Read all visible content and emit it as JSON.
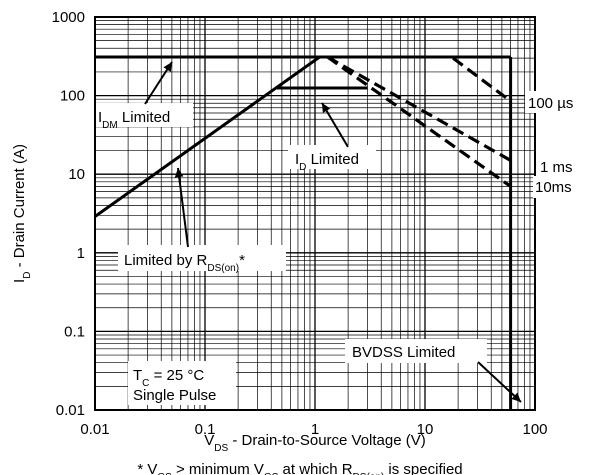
{
  "chart_data": {
    "type": "line",
    "x_scale": "log",
    "y_scale": "log",
    "xlim": [
      0.01,
      100
    ],
    "ylim": [
      0.01,
      1000
    ],
    "grid": "on (major and minor log gridlines)",
    "x_ticks": [
      "0.01",
      "0.1",
      "1",
      "10",
      "100"
    ],
    "y_ticks": [
      "1000",
      "100",
      "10",
      "1",
      "0.1",
      "0.01"
    ],
    "xlabel": {
      "main": "V",
      "sub": "DS",
      "rest": " - Drain-to-Source Voltage (V)"
    },
    "ylabel": {
      "main": "I",
      "sub": "D",
      "rest": " - Drain Current (A)"
    },
    "footnote": "* V_GS > minimum V_GS at which R_DS(on) is specified",
    "series": [
      {
        "style": "solid",
        "role": "RDS(on) limit",
        "points": [
          [
            0.01,
            2.9
          ],
          [
            1.1,
            310
          ]
        ]
      },
      {
        "style": "solid",
        "role": "IDM limit",
        "points": [
          [
            0.01,
            310
          ],
          [
            60,
            310
          ]
        ]
      },
      {
        "style": "solid",
        "role": "ID limit",
        "points": [
          [
            0.45,
            125
          ],
          [
            3.0,
            125
          ]
        ]
      },
      {
        "style": "solid",
        "role": "BVDSS limit",
        "points": [
          [
            60,
            0.01
          ],
          [
            60,
            310
          ]
        ]
      },
      {
        "style": "dashed",
        "name": "100 µs",
        "points": [
          [
            18,
            300
          ],
          [
            60,
            85
          ]
        ]
      },
      {
        "style": "dashed",
        "name": "1 ms",
        "points": [
          [
            1.3,
            310
          ],
          [
            60,
            15
          ]
        ]
      },
      {
        "style": "dashed",
        "name": "10ms",
        "points": [
          [
            1.3,
            310
          ],
          [
            60,
            7
          ]
        ]
      }
    ],
    "annotations": [
      {
        "id": "idm",
        "main": "I",
        "sub": "DM",
        "rest": " Limited"
      },
      {
        "id": "id",
        "main": "I",
        "sub": "D",
        "rest": " Limited"
      },
      {
        "id": "rds",
        "main": "Limited by R",
        "sub": "DS(on)",
        "rest": "*"
      },
      {
        "id": "bvdss",
        "main": "BVDSS Limited",
        "sub": "",
        "rest": ""
      },
      {
        "id": "us100",
        "main": "100 µs",
        "sub": "",
        "rest": ""
      },
      {
        "id": "ms1",
        "main": "1 ms",
        "sub": "",
        "rest": ""
      },
      {
        "id": "ms10",
        "main": "10ms",
        "sub": "",
        "rest": ""
      }
    ],
    "conditions": {
      "line1": {
        "main": "T",
        "sub": "C",
        "rest": " = 25 °C"
      },
      "line2": "Single Pulse"
    }
  }
}
